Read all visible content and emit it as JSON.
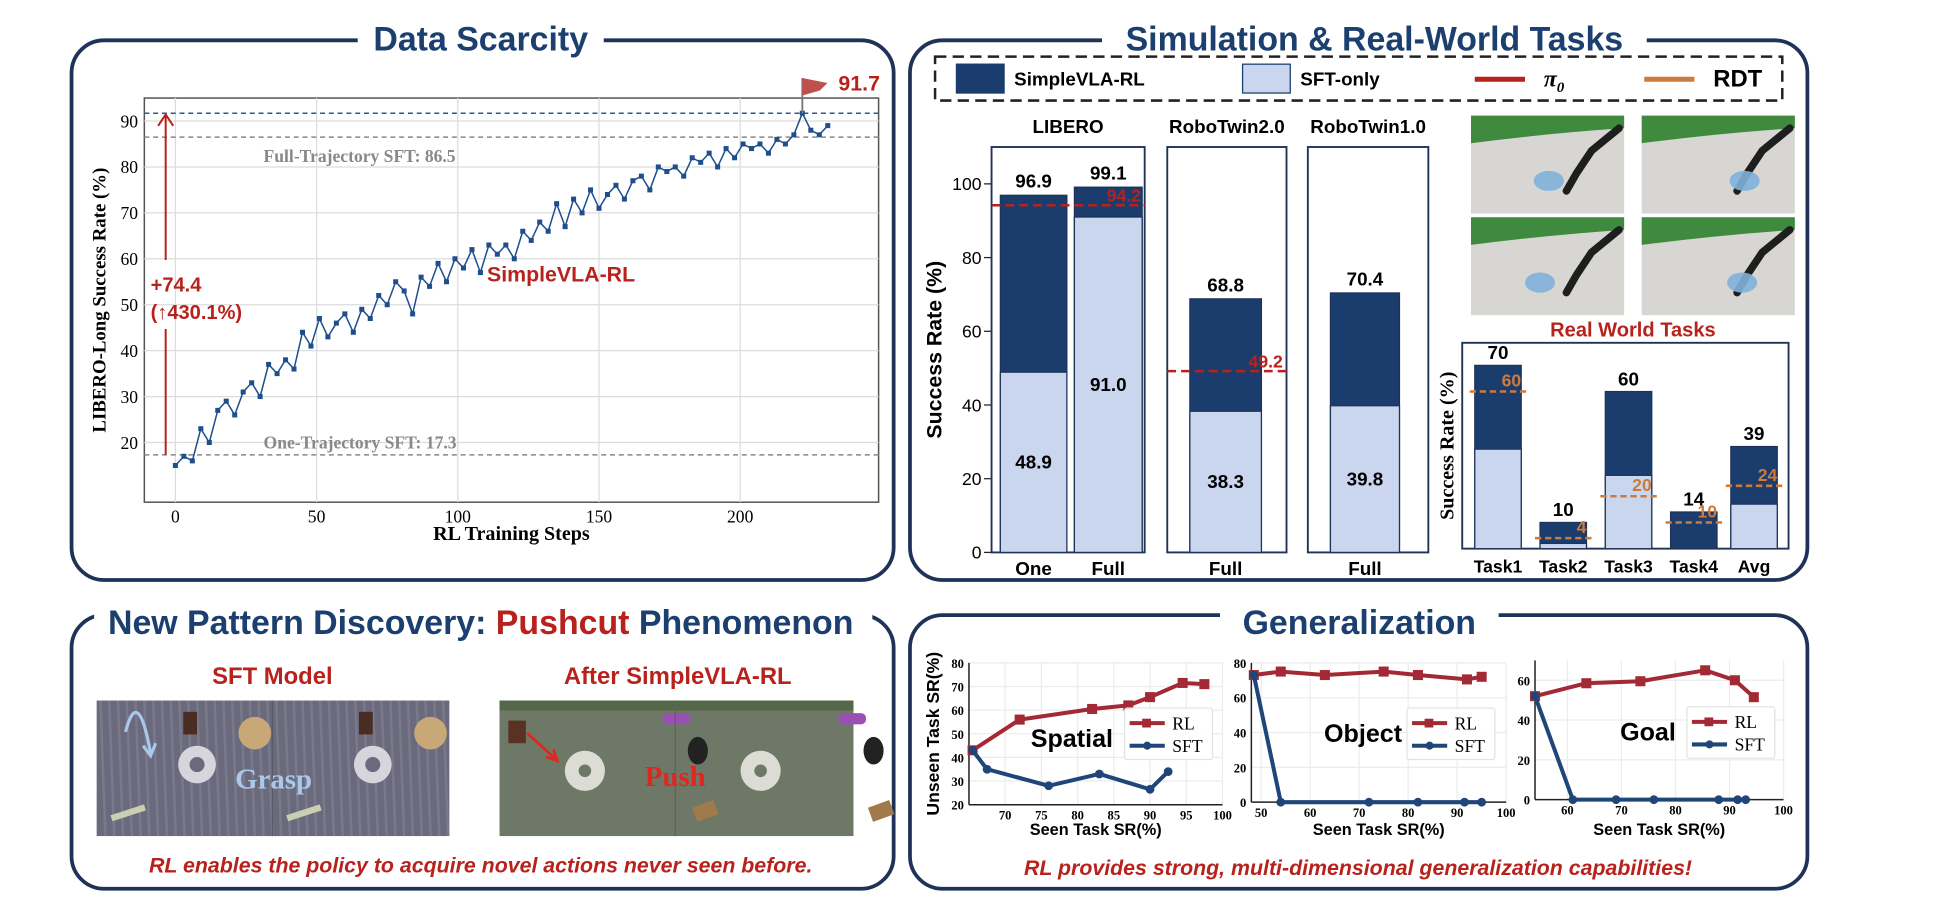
{
  "colors": {
    "navy": "#1b3f6e",
    "panel_border": "#1f3358",
    "simplevla_rl": "#1a3d6e",
    "sft_only": "#c9d6ee",
    "pi0": "#b8221c",
    "rdt": "#cd7a3a",
    "accent_red": "#b8221c",
    "gen_rl": "#a32a35",
    "gen_sft": "#1f4579",
    "grasp": "#a9c8ea"
  },
  "panels": {
    "data_scarcity": {
      "title": "Data Scarcity"
    },
    "sim_real": {
      "title": "Simulation & Real-World Tasks",
      "real_world_label": "Real World Tasks"
    },
    "pattern": {
      "title_part1": "New Pattern Discovery: ",
      "title_highlight": "Pushcut",
      "title_part2": " Phenomenon",
      "left_label": "SFT Model",
      "right_label": "After SimpleVLA-RL",
      "left_action": "Grasp",
      "right_action": "Push",
      "caption": "RL enables the policy to acquire novel actions never seen before."
    },
    "generalization": {
      "title": "Generalization",
      "caption": "RL provides strong, multi-dimensional generalization capabilities!"
    }
  },
  "legend": [
    {
      "label": "SimpleVLA-RL",
      "kind": "box",
      "color": "#1a3d6e"
    },
    {
      "label": "SFT-only",
      "kind": "box",
      "color": "#c9d6ee"
    },
    {
      "label": "π",
      "sub": "0",
      "kind": "line",
      "color": "#b8221c"
    },
    {
      "label": "RDT",
      "kind": "line",
      "color": "#cd7a3a"
    }
  ],
  "chart_data": [
    {
      "id": "data_scarcity",
      "type": "line",
      "xlabel": "RL Training Steps",
      "ylabel": "LIBERO-Long Success Rate (%)",
      "xlim": [
        -11,
        249
      ],
      "ylim": [
        7,
        95
      ],
      "xticks": [
        0,
        50,
        100,
        150,
        200
      ],
      "yticks": [
        20,
        30,
        40,
        50,
        60,
        70,
        80,
        90
      ],
      "grid": true,
      "series": [
        {
          "name": "SimpleVLA-RL",
          "x": [
            0,
            3,
            6,
            9,
            12,
            15,
            18,
            21,
            24,
            27,
            30,
            33,
            36,
            39,
            42,
            45,
            48,
            51,
            54,
            57,
            60,
            63,
            66,
            69,
            72,
            75,
            78,
            81,
            84,
            87,
            90,
            93,
            96,
            99,
            102,
            105,
            108,
            111,
            114,
            117,
            120,
            123,
            126,
            129,
            132,
            135,
            138,
            141,
            144,
            147,
            150,
            153,
            156,
            159,
            162,
            165,
            168,
            171,
            174,
            177,
            180,
            183,
            186,
            189,
            192,
            195,
            198,
            201,
            204,
            207,
            210,
            213,
            216,
            219,
            222,
            225,
            228,
            231
          ],
          "y": [
            15,
            17,
            16,
            23,
            20,
            27,
            29,
            26,
            31,
            33,
            30,
            37,
            35,
            38,
            36,
            44,
            41,
            47,
            43,
            46,
            48,
            44,
            49,
            47,
            52,
            50,
            55,
            53,
            48,
            56,
            54,
            59,
            55,
            60,
            58,
            62,
            57,
            63,
            61,
            63,
            60,
            66,
            64,
            68,
            66,
            72,
            67,
            73,
            70,
            75,
            71,
            74,
            76,
            73,
            77,
            78,
            75,
            80,
            79,
            80,
            78,
            82,
            81,
            83,
            80,
            84,
            82,
            85,
            84,
            85,
            83,
            86,
            85,
            87,
            91.7,
            88,
            87,
            89
          ]
        }
      ],
      "reference_lines": [
        {
          "label": "Full-Trajectory SFT: 86.5",
          "value": 86.5
        },
        {
          "label": "One-Trajectory SFT: 17.3",
          "value": 17.3
        },
        {
          "label": "91.7",
          "value": 91.7,
          "peak_step": 222
        }
      ],
      "annotation": {
        "gain": "+74.4",
        "relative": "(↑430.1%)"
      }
    },
    {
      "id": "simulation",
      "type": "bar",
      "stacked": true,
      "ylabel": "Success Rate (%)",
      "ylim": [
        0,
        110
      ],
      "yticks": [
        0,
        20,
        40,
        60,
        80,
        100
      ],
      "groups": [
        {
          "name": "LIBERO",
          "pi0": 94.2,
          "bars": [
            {
              "label": "One",
              "simplevla_rl": 96.9,
              "sft_only": 48.9
            },
            {
              "label": "Full",
              "simplevla_rl": 99.1,
              "sft_only": 91.0
            }
          ]
        },
        {
          "name": "RoboTwin2.0",
          "pi0": 49.2,
          "bars": [
            {
              "label": "Full",
              "simplevla_rl": 68.8,
              "sft_only": 38.3
            }
          ]
        },
        {
          "name": "RoboTwin1.0",
          "bars": [
            {
              "label": "Full",
              "simplevla_rl": 70.4,
              "sft_only": 39.8
            }
          ]
        }
      ]
    },
    {
      "id": "real_world",
      "type": "bar",
      "stacked": true,
      "ylabel": "Success Rate (%)",
      "ylim": [
        0,
        78
      ],
      "categories": [
        "Task1",
        "Task2",
        "Task3",
        "Task4",
        "Avg"
      ],
      "simplevla_rl": [
        70,
        10,
        60,
        14,
        39
      ],
      "sft_only": [
        38,
        2,
        28,
        0,
        17
      ],
      "rdt": [
        60,
        4,
        20,
        10,
        24
      ]
    },
    {
      "id": "gen_spatial",
      "type": "line",
      "label": "Spatial",
      "xlabel": "Seen Task SR(%)",
      "ylabel": "Unseen Task SR(%)",
      "xlim": [
        65,
        100
      ],
      "ylim": [
        20,
        80
      ],
      "xticks": [
        70,
        75,
        80,
        85,
        90,
        95,
        100
      ],
      "yticks": [
        20,
        30,
        40,
        50,
        60,
        70,
        80
      ],
      "series": [
        {
          "name": "RL",
          "x": [
            65.5,
            72,
            82,
            87,
            90,
            94.5,
            97.5
          ],
          "y": [
            43,
            56,
            60.5,
            62,
            65.5,
            71.5,
            71
          ]
        },
        {
          "name": "SFT",
          "x": [
            65.5,
            67.5,
            76,
            83,
            90,
            92.5
          ],
          "y": [
            43,
            35,
            28,
            33,
            26.5,
            34
          ]
        }
      ]
    },
    {
      "id": "gen_object",
      "type": "line",
      "label": "Object",
      "xlabel": "Seen Task SR(%)",
      "xlim": [
        48,
        100
      ],
      "ylim": [
        0,
        80
      ],
      "xticks": [
        50,
        60,
        70,
        80,
        90,
        100
      ],
      "yticks": [
        0,
        20,
        40,
        60,
        80
      ],
      "series": [
        {
          "name": "RL",
          "x": [
            48.5,
            54,
            63,
            75,
            82,
            92,
            95
          ],
          "y": [
            73,
            75,
            73,
            75,
            73,
            70.5,
            72
          ]
        },
        {
          "name": "SFT",
          "x": [
            48.5,
            54,
            72,
            82,
            91.5,
            95
          ],
          "y": [
            73,
            0,
            0,
            0,
            0,
            0
          ]
        }
      ]
    },
    {
      "id": "gen_goal",
      "type": "line",
      "label": "Goal",
      "xlabel": "Seen Task SR(%)",
      "xlim": [
        54,
        100
      ],
      "ylim": [
        0,
        70
      ],
      "xticks": [
        60,
        70,
        80,
        90,
        100
      ],
      "yticks": [
        0,
        20,
        40,
        60
      ],
      "series": [
        {
          "name": "RL",
          "x": [
            54,
            63.5,
            73.5,
            85.5,
            91,
            94.5
          ],
          "y": [
            52,
            58.5,
            59.5,
            65,
            60,
            51.5
          ]
        },
        {
          "name": "SFT",
          "x": [
            54,
            61,
            69,
            76,
            88,
            91.5,
            93
          ],
          "y": [
            52,
            0,
            0,
            0,
            0,
            0,
            0
          ]
        }
      ]
    }
  ]
}
